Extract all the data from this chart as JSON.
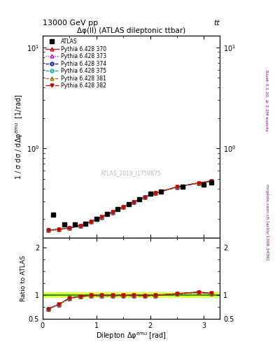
{
  "title_top": "13000 GeV pp",
  "title_top_right": "tt",
  "title_center": "Δφ(ll) (ATLAS dileptonic ttbar)",
  "xlabel": "Dilepton Δφ$^{emu}$ [rad]",
  "ylabel_main": "1 / σ dσ / dΔφ$^{emu}$  [1/rad]",
  "ylabel_ratio": "Ratio to ATLAS",
  "right_label_top": "Rivet 3.1.10, ≥ 3.2M events",
  "right_label_bottom": "mcplots.cern.ch [arXiv:1306.3436]",
  "watermark": "ATLAS_2019_I1759875",
  "atlas_x": [
    0.2,
    0.4,
    0.6,
    0.8,
    1.0,
    1.2,
    1.4,
    1.6,
    1.8,
    2.0,
    2.2,
    2.6,
    3.0,
    3.14
  ],
  "atlas_y": [
    0.22,
    0.175,
    0.175,
    0.18,
    0.2,
    0.225,
    0.25,
    0.28,
    0.315,
    0.355,
    0.375,
    0.415,
    0.435,
    0.46
  ],
  "mc_x": [
    0.1,
    0.3,
    0.5,
    0.7,
    0.9,
    1.1,
    1.3,
    1.5,
    1.7,
    1.9,
    2.1,
    2.5,
    2.9,
    3.14
  ],
  "mc_y_370": [
    0.155,
    0.158,
    0.163,
    0.172,
    0.188,
    0.21,
    0.235,
    0.263,
    0.295,
    0.33,
    0.362,
    0.415,
    0.455,
    0.475
  ],
  "mc_y_373": [
    0.154,
    0.157,
    0.162,
    0.171,
    0.187,
    0.208,
    0.233,
    0.261,
    0.293,
    0.328,
    0.36,
    0.413,
    0.452,
    0.472
  ],
  "mc_y_374": [
    0.154,
    0.157,
    0.162,
    0.171,
    0.187,
    0.208,
    0.233,
    0.261,
    0.293,
    0.328,
    0.36,
    0.413,
    0.452,
    0.472
  ],
  "mc_y_375": [
    0.154,
    0.157,
    0.162,
    0.171,
    0.187,
    0.208,
    0.233,
    0.261,
    0.293,
    0.328,
    0.36,
    0.413,
    0.452,
    0.472
  ],
  "mc_y_381": [
    0.155,
    0.158,
    0.163,
    0.172,
    0.188,
    0.21,
    0.235,
    0.263,
    0.295,
    0.33,
    0.362,
    0.415,
    0.455,
    0.475
  ],
  "mc_y_382": [
    0.155,
    0.158,
    0.163,
    0.172,
    0.188,
    0.21,
    0.235,
    0.263,
    0.295,
    0.33,
    0.362,
    0.415,
    0.455,
    0.475
  ],
  "series": [
    {
      "label": "Pythia 6.428 370",
      "color": "#cc0000",
      "marker": "^",
      "linestyle": "-",
      "fillstyle": "none"
    },
    {
      "label": "Pythia 6.428 373",
      "color": "#cc00cc",
      "marker": "^",
      "linestyle": ":",
      "fillstyle": "none"
    },
    {
      "label": "Pythia 6.428 374",
      "color": "#0000cc",
      "marker": "o",
      "linestyle": "--",
      "fillstyle": "none"
    },
    {
      "label": "Pythia 6.428 375",
      "color": "#00aaaa",
      "marker": "o",
      "linestyle": "--",
      "fillstyle": "none"
    },
    {
      "label": "Pythia 6.428 381",
      "color": "#aa6600",
      "marker": "^",
      "linestyle": "--",
      "fillstyle": "none"
    },
    {
      "label": "Pythia 6.428 382",
      "color": "#cc0000",
      "marker": "v",
      "linestyle": "-.",
      "fillstyle": "full"
    }
  ],
  "ylim_main": [
    0.13,
    13.0
  ],
  "ylim_ratio": [
    0.5,
    2.2
  ],
  "xlim": [
    0.0,
    3.3
  ],
  "xticks": [
    0,
    1,
    2,
    3
  ],
  "ratio_ref_line": 1.0,
  "ratio_band_color": "#ddff44",
  "ratio_band_low": 0.95,
  "ratio_band_high": 1.05
}
